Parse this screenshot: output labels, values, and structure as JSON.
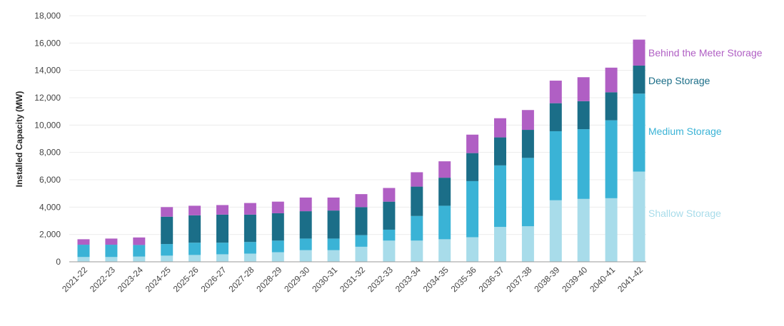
{
  "chart_data": {
    "type": "bar",
    "stacked": true,
    "ylabel": "Installed Capacity (MW)",
    "xlabel": "",
    "ylim": [
      0,
      18000
    ],
    "yticks": [
      "0",
      "2,000",
      "4,000",
      "6,000",
      "8,000",
      "10,000",
      "12,000",
      "14,000",
      "16,000",
      "18,000"
    ],
    "ytick_values": [
      0,
      2000,
      4000,
      6000,
      8000,
      10000,
      12000,
      14000,
      16000,
      18000
    ],
    "grid": true,
    "legend_placement": "right, inline labels",
    "categories": [
      "2021-22",
      "2022-23",
      "2023-24",
      "2024-25",
      "2025-26",
      "2026-27",
      "2027-28",
      "2028-29",
      "2029-30",
      "2030-31",
      "2031-32",
      "2032-33",
      "2033-34",
      "2034-35",
      "2035-36",
      "2036-37",
      "2037-38",
      "2038-39",
      "2039-40",
      "2040-41",
      "2041-42"
    ],
    "series": [
      {
        "name": "Shallow Storage",
        "color": "#a8dcea",
        "values": [
          350,
          350,
          380,
          450,
          500,
          550,
          600,
          700,
          850,
          850,
          1100,
          1550,
          1550,
          1650,
          1800,
          2550,
          2600,
          4500,
          4600,
          4650,
          6600
        ]
      },
      {
        "name": "Medium Storage",
        "color": "#3ab3d6",
        "values": [
          900,
          900,
          850,
          850,
          900,
          850,
          850,
          850,
          850,
          850,
          850,
          800,
          1800,
          2450,
          4100,
          4500,
          5000,
          5050,
          5100,
          5700,
          5700
        ]
      },
      {
        "name": "Deep Storage",
        "color": "#1b6e88",
        "values": [
          0,
          0,
          0,
          2000,
          2000,
          2050,
          2000,
          2000,
          2000,
          2050,
          2050,
          2050,
          2150,
          2050,
          2050,
          2050,
          2050,
          2050,
          2050,
          2050,
          2050
        ]
      },
      {
        "name": "Behind the Meter Storage",
        "color": "#b05fc4",
        "values": [
          400,
          450,
          550,
          700,
          700,
          700,
          850,
          850,
          1000,
          950,
          950,
          1000,
          1050,
          1200,
          1350,
          1400,
          1450,
          1650,
          1750,
          1800,
          1900
        ]
      }
    ]
  }
}
